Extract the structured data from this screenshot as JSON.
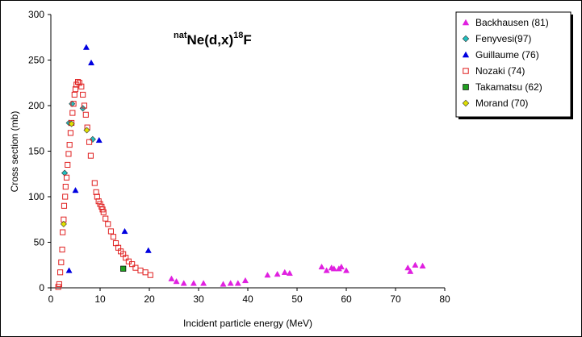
{
  "chart_data": {
    "type": "scatter",
    "title_prefix": "nat",
    "title_main": "Ne(d,x)",
    "title_mass": "18",
    "title_element": "F",
    "xlabel": "Incident particle energy (MeV)",
    "ylabel": "Cross section (mb)",
    "xlim": [
      0,
      80
    ],
    "ylim": [
      0,
      300
    ],
    "xticks": [
      0,
      10,
      20,
      30,
      40,
      50,
      60,
      70,
      80
    ],
    "yticks": [
      0,
      50,
      100,
      150,
      200,
      250,
      300
    ],
    "grid": false,
    "legend_position": "top-right",
    "series": [
      {
        "name": "Backhausen (81)",
        "marker": "triangle-icon",
        "color": "#e020e0",
        "points": [
          [
            24.5,
            10
          ],
          [
            25.5,
            7
          ],
          [
            27,
            5
          ],
          [
            29,
            5
          ],
          [
            31,
            5
          ],
          [
            35,
            4
          ],
          [
            36.5,
            5
          ],
          [
            38,
            5
          ],
          [
            39.5,
            8
          ],
          [
            44,
            14
          ],
          [
            46,
            15
          ],
          [
            47.5,
            17
          ],
          [
            48.5,
            16
          ],
          [
            55,
            23
          ],
          [
            56,
            19
          ],
          [
            57,
            22
          ],
          [
            57.5,
            21
          ],
          [
            58.5,
            21
          ],
          [
            59,
            23
          ],
          [
            60,
            19
          ],
          [
            72.5,
            22
          ],
          [
            73,
            18
          ],
          [
            74,
            25
          ],
          [
            75.5,
            24
          ]
        ]
      },
      {
        "name": "Fenyvesi(97)",
        "marker": "diamond-icon",
        "color": "#20c0c0",
        "points": [
          [
            2.8,
            126
          ],
          [
            3.7,
            181
          ],
          [
            4.3,
            202
          ],
          [
            6.5,
            197
          ],
          [
            8.5,
            163
          ]
        ]
      },
      {
        "name": "Guillaume (76)",
        "marker": "triangle-icon",
        "color": "#0000e0",
        "points": [
          [
            3.7,
            19
          ],
          [
            5,
            107
          ],
          [
            7.2,
            264
          ],
          [
            8.2,
            247
          ],
          [
            9.8,
            162
          ],
          [
            15,
            62
          ],
          [
            19.8,
            41
          ]
        ]
      },
      {
        "name": "Nozaki (74)",
        "marker": "square-open-icon",
        "color": "#e02020",
        "points": [
          [
            1.5,
            1
          ],
          [
            1.7,
            4
          ],
          [
            1.9,
            17
          ],
          [
            2.1,
            28
          ],
          [
            2.3,
            42
          ],
          [
            2.4,
            61
          ],
          [
            2.6,
            75
          ],
          [
            2.7,
            90
          ],
          [
            2.9,
            100
          ],
          [
            3.0,
            111
          ],
          [
            3.2,
            121
          ],
          [
            3.4,
            135
          ],
          [
            3.6,
            147
          ],
          [
            3.8,
            157
          ],
          [
            4.0,
            170
          ],
          [
            4.2,
            181
          ],
          [
            4.4,
            192
          ],
          [
            4.6,
            202
          ],
          [
            4.8,
            212
          ],
          [
            5.0,
            218
          ],
          [
            5.2,
            223
          ],
          [
            5.5,
            226
          ],
          [
            5.8,
            225
          ],
          [
            6.2,
            221
          ],
          [
            6.5,
            212
          ],
          [
            6.8,
            200
          ],
          [
            7.1,
            190
          ],
          [
            7.4,
            176
          ],
          [
            7.8,
            160
          ],
          [
            8.1,
            145
          ],
          [
            8.9,
            115
          ],
          [
            9.2,
            105
          ],
          [
            9.4,
            100
          ],
          [
            9.7,
            95
          ],
          [
            10.0,
            92
          ],
          [
            10.3,
            89
          ],
          [
            10.5,
            86
          ],
          [
            10.7,
            83
          ],
          [
            11.1,
            76
          ],
          [
            11.6,
            70
          ],
          [
            12.2,
            62
          ],
          [
            12.7,
            56
          ],
          [
            13.2,
            49
          ],
          [
            13.7,
            44
          ],
          [
            14.2,
            40
          ],
          [
            14.7,
            37
          ],
          [
            15.2,
            33
          ],
          [
            15.8,
            29
          ],
          [
            16.5,
            26
          ],
          [
            17.2,
            22
          ],
          [
            18.2,
            19
          ],
          [
            19.2,
            17
          ],
          [
            20.2,
            14
          ]
        ]
      },
      {
        "name": "Takamatsu (62)",
        "marker": "square-filled-icon",
        "color": "#20a020",
        "points": [
          [
            14.7,
            21
          ]
        ]
      },
      {
        "name": "Morand (70)",
        "marker": "diamond-icon",
        "color": "#e0e000",
        "points": [
          [
            2.6,
            70
          ],
          [
            4.2,
            180
          ],
          [
            7.3,
            173
          ]
        ]
      }
    ]
  }
}
